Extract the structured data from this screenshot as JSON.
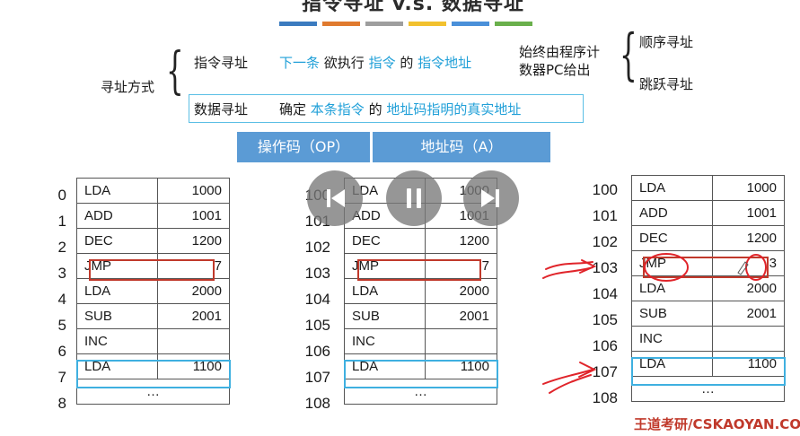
{
  "title": "指令寻址 v.s. 数据寻址",
  "colors": {
    "bar_colors": [
      "#3b7bbf",
      "#e07a2e",
      "#9e9e9e",
      "#f2c12e",
      "#4a90d9",
      "#6ab04c"
    ],
    "accent_blue": "#21a0d8",
    "header_bg": "#5b9bd5",
    "highlight_red": "#c0392b",
    "highlight_blue": "#3fb0e0"
  },
  "addressing": {
    "root_label": "寻址方式",
    "instr": {
      "label": "指令寻址",
      "p1": "下一条",
      "p2": " 欲执行 ",
      "p3": "指令",
      "p4": " 的 ",
      "p5": "指令地址",
      "source_line1": "始终由程序计",
      "source_line2": "数器PC给出",
      "kinds": [
        "顺序寻址",
        "跳跃寻址"
      ]
    },
    "data": {
      "label": "数据寻址",
      "p1": "确定 ",
      "p2": "本条指令",
      "p3": " 的 ",
      "p4": "地址码指明的真实地址"
    }
  },
  "header": {
    "opcode": "操作码（OP）",
    "address": "地址码（A）"
  },
  "tables": [
    {
      "addresses": [
        "0",
        "1",
        "2",
        "3",
        "4",
        "5",
        "6",
        "7",
        "8"
      ],
      "rows": [
        {
          "op": "LDA",
          "addr": "1000"
        },
        {
          "op": "ADD",
          "addr": "1001"
        },
        {
          "op": "DEC",
          "addr": "1200"
        },
        {
          "op": "JMP",
          "addr": "7"
        },
        {
          "op": "LDA",
          "addr": "2000"
        },
        {
          "op": "SUB",
          "addr": "2001"
        },
        {
          "op": "INC",
          "addr": ""
        },
        {
          "op": "LDA",
          "addr": "1100"
        },
        {
          "op": "…",
          "addr": ""
        }
      ]
    },
    {
      "addresses": [
        "100",
        "101",
        "102",
        "103",
        "104",
        "105",
        "106",
        "107",
        "108"
      ],
      "rows": [
        {
          "op": "LDA",
          "addr": "1000"
        },
        {
          "op": "ADD",
          "addr": "1001"
        },
        {
          "op": "DEC",
          "addr": "1200"
        },
        {
          "op": "JMP",
          "addr": "7"
        },
        {
          "op": "LDA",
          "addr": "2000"
        },
        {
          "op": "SUB",
          "addr": "2001"
        },
        {
          "op": "INC",
          "addr": ""
        },
        {
          "op": "LDA",
          "addr": "1100"
        },
        {
          "op": "…",
          "addr": ""
        }
      ]
    },
    {
      "addresses": [
        "100",
        "101",
        "102",
        "103",
        "104",
        "105",
        "106",
        "107",
        "108"
      ],
      "rows": [
        {
          "op": "LDA",
          "addr": "1000"
        },
        {
          "op": "ADD",
          "addr": "1001"
        },
        {
          "op": "DEC",
          "addr": "1200"
        },
        {
          "op": "JMP",
          "addr": "3"
        },
        {
          "op": "LDA",
          "addr": "2000"
        },
        {
          "op": "SUB",
          "addr": "2001"
        },
        {
          "op": "INC",
          "addr": ""
        },
        {
          "op": "LDA",
          "addr": "1100"
        },
        {
          "op": "…",
          "addr": ""
        }
      ]
    }
  ],
  "watermark": "王道考研/CSKAOYAN.COM",
  "player": {
    "prev_icon": "skip-back-icon",
    "pause_icon": "pause-icon",
    "next_icon": "skip-forward-icon"
  }
}
